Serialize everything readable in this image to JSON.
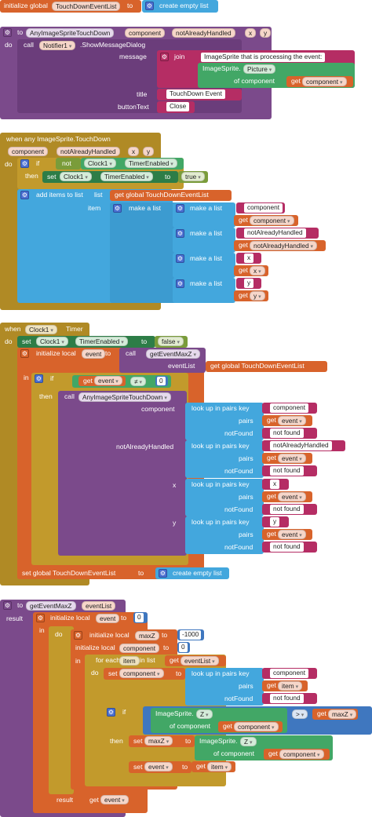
{
  "global_var": {
    "keyword": "initialize global",
    "name": "TouchDownEventList",
    "to": "to",
    "value": "create empty list"
  },
  "proc1": {
    "to": "to",
    "name": "AnyImageSpriteTouchDown",
    "params": [
      "component",
      "notAlreadyHandled",
      "x",
      "y"
    ],
    "do": "do",
    "call": "call",
    "component": "Notifier1",
    "method": ".ShowMessageDialog",
    "message_label": "message",
    "join": "join",
    "join_str": "ImageSprite that is processing the event: ",
    "imagesprite": "ImageSprite.",
    "picture": "Picture",
    "of_component": "of component",
    "get": "get",
    "get_component": "component",
    "title_label": "title",
    "title_value": "TouchDown Event",
    "button_label": "buttonText",
    "button_value": "Close"
  },
  "event1": {
    "header": "when any ImageSprite.TouchDown",
    "params": [
      "component",
      "notAlreadyHandled",
      "x",
      "y"
    ],
    "do": "do",
    "if": "if",
    "not": "not",
    "clock": "Clock1",
    "timer_enabled": "TimerEnabled",
    "then": "then",
    "set": "set",
    "to": "to",
    "true": "true",
    "add_items": "add items to list",
    "list": "list",
    "get_global": "get global TouchDownEventList",
    "item": "item",
    "make_a_list": "make a list",
    "get": "get",
    "component_str": "component",
    "component_var": "component",
    "nah_str": "notAlreadyHandled",
    "nah_var": "notAlreadyHandled",
    "x_str": "x",
    "x_var": "x",
    "y_str": "y",
    "y_var": "y"
  },
  "event2": {
    "when": "when",
    "clock": "Clock1",
    "timer": "Timer",
    "do": "do",
    "set": "set",
    "clock_prop": "Clock1",
    "timer_enabled": "TimerEnabled",
    "to": "to",
    "false": "false",
    "init_local": "initialize local",
    "event_var": "event",
    "call": "call",
    "getEventMaxZ": "getEventMaxZ",
    "eventList": "eventList",
    "get_global": "get global TouchDownEventList",
    "in": "in",
    "if": "if",
    "get": "get",
    "neq": "≠",
    "zero": "0",
    "then": "then",
    "proc_name": "AnyImageSpriteTouchDown",
    "component_label": "component",
    "lookup": "look up in pairs  key",
    "pairs": "pairs",
    "notFound": "notFound",
    "not_found": "not found",
    "nah_label": "notAlreadyHandled",
    "x_label": "x",
    "y_label": "y",
    "key_component": "component",
    "key_nah": "notAlreadyHandled",
    "key_x": "x",
    "key_y": "y",
    "set_global": "set global TouchDownEventList",
    "create_empty": "create empty list"
  },
  "proc2": {
    "to": "to",
    "name": "getEventMaxZ",
    "param": "eventList",
    "result": "result",
    "init_local": "initialize local",
    "event_var": "event",
    "in": "in",
    "do": "do",
    "maxZ": "maxZ",
    "neg1000": "-1000",
    "component_var": "component",
    "zero": "0",
    "for_each": "for each",
    "item": "item",
    "in_list": "in list",
    "get": "get",
    "eventList": "eventList",
    "set": "set",
    "component": "component",
    "lookup": "look up in pairs  key",
    "pairs": "pairs",
    "notFound": "notFound",
    "not_found": "not found",
    "if": "if",
    "imagesprite": "ImageSprite.",
    "Z": "Z",
    "of_component": "of component",
    "gt": ">",
    "then": "then"
  },
  "colors": {
    "procedure": "#7b4a8b",
    "control": "#b08a25",
    "variable": "#d8632b",
    "list": "#43a7dd",
    "text": "#b52d64",
    "component": "#42a766",
    "math": "#3f77bf",
    "logic": "#7a9c3a"
  }
}
